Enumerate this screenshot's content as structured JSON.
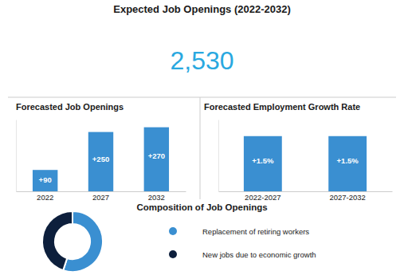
{
  "title": "Expected Job Openings (2022-2032)",
  "annotations": [
    {
      "value": 2530,
      "label": "2,530",
      "color": "#29a8e0"
    }
  ],
  "chart_data": [
    {
      "type": "bar",
      "title": "Forecasted Job Openings",
      "categories": [
        "2022",
        "2027",
        "2032"
      ],
      "values": [
        90,
        250,
        270
      ],
      "value_labels": [
        "+90",
        "+250",
        "+270"
      ],
      "data_labels": true,
      "color": "#3a8fd1",
      "ylim": [
        0,
        302.4
      ],
      "tick_labels": "x",
      "grid": false
    },
    {
      "type": "bar",
      "title": "Forecasted Employment Growth Rate",
      "categories": [
        "2022-2027",
        "2027-2032"
      ],
      "values": [
        1.5,
        1.5
      ],
      "value_labels": [
        "+1.5%",
        "+1.5%"
      ],
      "data_labels": true,
      "color": "#3a8fd1",
      "ylim": [
        0,
        1.95
      ],
      "tick_labels": "x",
      "grid": false
    },
    {
      "type": "donut",
      "title": "Composition of Job Openings",
      "categories": [
        "Replacement of retiring workers",
        "New jobs due to economic growth"
      ],
      "values": [
        55,
        45
      ],
      "colors": [
        "#3a8fd1",
        "#0d1f3c"
      ],
      "legend": "right"
    }
  ]
}
